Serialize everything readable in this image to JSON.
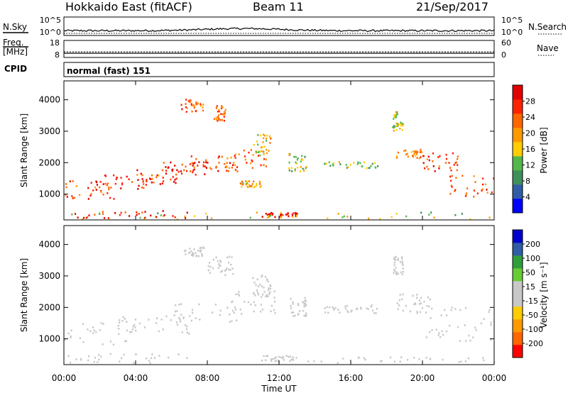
{
  "header": {
    "title": "Hokkaido East (fitACF)",
    "beam": "Beam 11",
    "date": "21/Sep/2017"
  },
  "colors": {
    "power_scale": [
      "#0000ff",
      "#2f5ca6",
      "#3f8f5a",
      "#52b84a",
      "#ffcc00",
      "#ff9900",
      "#ff6600",
      "#ff2200",
      "#e00000"
    ],
    "velocity_scale": [
      "#ff0000",
      "#ff6600",
      "#ff9900",
      "#ffcc00",
      "#c8c8c8",
      "#c8c8c8",
      "#66cc33",
      "#2e9e3a",
      "#2f5ca6",
      "#0000cc"
    ],
    "low_range_orange": "#f0a020"
  },
  "chart_data": [
    {
      "type": "line",
      "name": "noise",
      "left_label": "N.Sky",
      "right_label": "N.Search",
      "left_ticks": [
        "10^5",
        "10^0"
      ],
      "right_ticks": [
        "10^5",
        "10^0"
      ],
      "x_range_hours": [
        0,
        24
      ]
    },
    {
      "type": "line",
      "name": "frequency",
      "left_label_lines": [
        "Freq.",
        "[MHz]"
      ],
      "left_ticks": [
        "18",
        "8"
      ],
      "right_label": "Nave",
      "right_ticks": [
        "60",
        "0"
      ],
      "freq_mhz": 10.5,
      "nave": 20
    },
    {
      "type": "table",
      "name": "cpid",
      "label": "CPID",
      "value": "normal (fast) 151"
    },
    {
      "type": "heatmap",
      "name": "power",
      "xlabel": "",
      "ylabel": "Slant Range [km]",
      "colorbar_label": "Power [dB]",
      "colorbar_ticks": [
        "28",
        "24",
        "20",
        "16",
        "12",
        "8",
        "4"
      ],
      "colorbar_range": [
        0,
        30
      ],
      "x_range_hours": [
        0,
        24
      ],
      "y_range_km": [
        180,
        4600
      ],
      "y_ticks": [
        1000,
        2000,
        3000,
        4000
      ],
      "x_ticks": [
        "00:00",
        "04:00",
        "08:00",
        "12:00",
        "16:00",
        "20:00",
        "00:00"
      ],
      "echo_bands": [
        {
          "t0": 0.0,
          "t1": 3.0,
          "r0": 800,
          "r1": 1400,
          "value": 24
        },
        {
          "t0": 1.5,
          "t1": 5.0,
          "r0": 1100,
          "r1": 1600,
          "value": 26
        },
        {
          "t0": 4.0,
          "t1": 6.5,
          "r0": 1300,
          "r1": 1800,
          "value": 24
        },
        {
          "t0": 5.5,
          "t1": 8.0,
          "r0": 1500,
          "r1": 2000,
          "value": 26
        },
        {
          "t0": 7.0,
          "t1": 10.0,
          "r0": 1700,
          "r1": 2200,
          "value": 24
        },
        {
          "t0": 9.0,
          "t1": 11.5,
          "r0": 1800,
          "r1": 2400,
          "value": 22
        },
        {
          "t0": 10.5,
          "t1": 11.5,
          "r0": 2200,
          "r1": 2900,
          "value": 16
        },
        {
          "t0": 6.5,
          "t1": 7.8,
          "r0": 3600,
          "r1": 4000,
          "value": 22
        },
        {
          "t0": 8.3,
          "t1": 9.0,
          "r0": 3300,
          "r1": 3800,
          "value": 22
        },
        {
          "t0": 9.8,
          "t1": 11.0,
          "r0": 1200,
          "r1": 1400,
          "value": 18
        },
        {
          "t0": 12.5,
          "t1": 13.5,
          "r0": 1700,
          "r1": 2300,
          "value": 14
        },
        {
          "t0": 14.5,
          "t1": 17.5,
          "r0": 1800,
          "r1": 2000,
          "value": 12
        },
        {
          "t0": 18.5,
          "t1": 20.0,
          "r0": 2100,
          "r1": 2400,
          "value": 20
        },
        {
          "t0": 18.3,
          "t1": 18.9,
          "r0": 3000,
          "r1": 3600,
          "value": 14
        },
        {
          "t0": 20.0,
          "t1": 22.0,
          "r0": 1700,
          "r1": 2300,
          "value": 24
        },
        {
          "t0": 21.5,
          "t1": 24.0,
          "r0": 900,
          "r1": 1600,
          "value": 22
        },
        {
          "t0": 11.0,
          "t1": 13.0,
          "r0": 250,
          "r1": 400,
          "value": 28
        },
        {
          "t0": 0.0,
          "t1": 24.0,
          "r0": 180,
          "r1": 400,
          "value": 14
        },
        {
          "t0": 0.5,
          "t1": 7.0,
          "r0": 200,
          "r1": 450,
          "value": 26
        }
      ]
    },
    {
      "type": "heatmap",
      "name": "velocity",
      "xlabel": "Time UT",
      "ylabel": "Slant Range [km]",
      "colorbar_label": "Velocity [m s⁻¹]",
      "colorbar_ticks": [
        "200",
        "100",
        "50",
        "15",
        "-15",
        "-50",
        "-100",
        "-200"
      ],
      "colorbar_range": [
        -250,
        250
      ],
      "x_range_hours": [
        0,
        24
      ],
      "y_range_km": [
        180,
        4600
      ],
      "y_ticks": [
        1000,
        2000,
        3000,
        4000
      ],
      "x_ticks": [
        "00:00",
        "04:00",
        "08:00",
        "12:00",
        "16:00",
        "20:00",
        "00:00"
      ],
      "echo_bands": [
        {
          "t0": 0.0,
          "t1": 4.0,
          "r0": 800,
          "r1": 1500,
          "value": 0
        },
        {
          "t0": 3.0,
          "t1": 7.0,
          "r0": 1100,
          "r1": 1700,
          "value": 0
        },
        {
          "t0": 6.0,
          "t1": 10.0,
          "r0": 1500,
          "r1": 2100,
          "value": 0
        },
        {
          "t0": 9.0,
          "t1": 11.8,
          "r0": 1800,
          "r1": 2500,
          "value": 0
        },
        {
          "t0": 10.5,
          "t1": 11.5,
          "r0": 2300,
          "r1": 3000,
          "value": 5
        },
        {
          "t0": 6.5,
          "t1": 7.8,
          "r0": 3600,
          "r1": 3900,
          "value": 0
        },
        {
          "t0": 8.0,
          "t1": 9.5,
          "r0": 3000,
          "r1": 3600,
          "value": 0
        },
        {
          "t0": 12.5,
          "t1": 13.5,
          "r0": 1700,
          "r1": 2300,
          "value": 40
        },
        {
          "t0": 14.5,
          "t1": 17.5,
          "r0": 1800,
          "r1": 2050,
          "value": 40
        },
        {
          "t0": 18.5,
          "t1": 20.5,
          "r0": 1800,
          "r1": 2400,
          "value": 0
        },
        {
          "t0": 20.0,
          "t1": 24.0,
          "r0": 900,
          "r1": 2000,
          "value": 0
        },
        {
          "t0": 18.3,
          "t1": 18.9,
          "r0": 3000,
          "r1": 3600,
          "value": 0
        },
        {
          "t0": 11.0,
          "t1": 13.0,
          "r0": 250,
          "r1": 450,
          "value": -40
        },
        {
          "t0": 13.0,
          "t1": 24.0,
          "r0": 200,
          "r1": 400,
          "value": -30
        },
        {
          "t0": 0.0,
          "t1": 7.0,
          "r0": 200,
          "r1": 500,
          "value": 0
        }
      ]
    }
  ]
}
